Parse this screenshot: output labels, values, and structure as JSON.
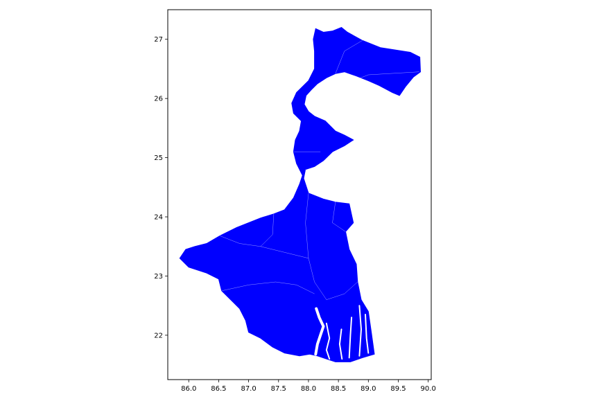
{
  "chart_data": {
    "type": "map",
    "title": "",
    "xlabel": "",
    "ylabel": "",
    "xlim": [
      85.65,
      90.05
    ],
    "ylim": [
      21.25,
      27.5
    ],
    "x_ticks": [
      "86.0",
      "86.5",
      "87.0",
      "87.5",
      "88.0",
      "88.5",
      "89.0",
      "89.5",
      "90.0"
    ],
    "y_ticks": [
      "22",
      "23",
      "24",
      "25",
      "26",
      "27"
    ],
    "fill_color": "#0000ff",
    "edge_color": "#ffffff",
    "grid": false,
    "legend": "none",
    "outline": [
      [
        88.12,
        27.18
      ],
      [
        88.25,
        27.12
      ],
      [
        88.4,
        27.14
      ],
      [
        88.55,
        27.2
      ],
      [
        88.65,
        27.12
      ],
      [
        88.9,
        26.98
      ],
      [
        89.2,
        26.86
      ],
      [
        89.45,
        26.82
      ],
      [
        89.7,
        26.78
      ],
      [
        89.86,
        26.7
      ],
      [
        89.87,
        26.45
      ],
      [
        89.75,
        26.36
      ],
      [
        89.62,
        26.2
      ],
      [
        89.52,
        26.05
      ],
      [
        89.4,
        26.1
      ],
      [
        89.18,
        26.22
      ],
      [
        89.0,
        26.3
      ],
      [
        88.8,
        26.38
      ],
      [
        88.6,
        26.45
      ],
      [
        88.45,
        26.42
      ],
      [
        88.3,
        26.35
      ],
      [
        88.15,
        26.25
      ],
      [
        88.05,
        26.15
      ],
      [
        87.96,
        26.05
      ],
      [
        87.93,
        25.9
      ],
      [
        88.0,
        25.78
      ],
      [
        88.1,
        25.7
      ],
      [
        88.28,
        25.62
      ],
      [
        88.45,
        25.45
      ],
      [
        88.6,
        25.38
      ],
      [
        88.75,
        25.3
      ],
      [
        88.6,
        25.2
      ],
      [
        88.4,
        25.1
      ],
      [
        88.25,
        24.95
      ],
      [
        88.1,
        24.85
      ],
      [
        87.95,
        24.8
      ],
      [
        87.92,
        24.65
      ],
      [
        88.0,
        24.4
      ],
      [
        88.25,
        24.3
      ],
      [
        88.45,
        24.25
      ],
      [
        88.68,
        24.22
      ],
      [
        88.75,
        23.9
      ],
      [
        88.62,
        23.75
      ],
      [
        88.68,
        23.45
      ],
      [
        88.8,
        23.2
      ],
      [
        88.82,
        22.9
      ],
      [
        88.88,
        22.6
      ],
      [
        89.0,
        22.4
      ],
      [
        89.05,
        22.05
      ],
      [
        89.1,
        21.68
      ],
      [
        88.9,
        21.62
      ],
      [
        88.7,
        21.55
      ],
      [
        88.45,
        21.55
      ],
      [
        88.3,
        21.6
      ],
      [
        88.15,
        21.65
      ],
      [
        88.02,
        21.68
      ],
      [
        87.85,
        21.65
      ],
      [
        87.6,
        21.7
      ],
      [
        87.4,
        21.8
      ],
      [
        87.2,
        21.95
      ],
      [
        87.0,
        22.05
      ],
      [
        86.95,
        22.25
      ],
      [
        86.85,
        22.45
      ],
      [
        86.75,
        22.55
      ],
      [
        86.55,
        22.75
      ],
      [
        86.5,
        22.95
      ],
      [
        86.3,
        23.05
      ],
      [
        86.0,
        23.15
      ],
      [
        85.85,
        23.3
      ],
      [
        85.95,
        23.45
      ],
      [
        86.1,
        23.5
      ],
      [
        86.3,
        23.55
      ],
      [
        86.52,
        23.68
      ],
      [
        86.8,
        23.82
      ],
      [
        87.0,
        23.9
      ],
      [
        87.2,
        23.98
      ],
      [
        87.42,
        24.05
      ],
      [
        87.6,
        24.12
      ],
      [
        87.75,
        24.32
      ],
      [
        87.85,
        24.55
      ],
      [
        87.9,
        24.7
      ],
      [
        87.8,
        24.9
      ],
      [
        87.75,
        25.1
      ],
      [
        87.78,
        25.3
      ],
      [
        87.85,
        25.45
      ],
      [
        87.88,
        25.62
      ],
      [
        87.75,
        25.75
      ],
      [
        87.72,
        25.92
      ],
      [
        87.8,
        26.1
      ],
      [
        88.0,
        26.3
      ],
      [
        88.1,
        26.5
      ],
      [
        88.1,
        26.8
      ],
      [
        88.08,
        27.0
      ]
    ],
    "rivers": [
      [
        [
          88.13,
          22.45
        ],
        [
          88.18,
          22.3
        ],
        [
          88.25,
          22.15
        ],
        [
          88.2,
          22.0
        ],
        [
          88.15,
          21.85
        ],
        [
          88.12,
          21.68
        ]
      ],
      [
        [
          88.3,
          22.2
        ],
        [
          88.35,
          21.95
        ],
        [
          88.3,
          21.75
        ],
        [
          88.35,
          21.6
        ]
      ],
      [
        [
          88.55,
          22.1
        ],
        [
          88.52,
          21.85
        ],
        [
          88.56,
          21.6
        ]
      ],
      [
        [
          88.72,
          22.3
        ],
        [
          88.7,
          22.0
        ],
        [
          88.68,
          21.62
        ]
      ],
      [
        [
          88.85,
          22.5
        ],
        [
          88.88,
          22.1
        ],
        [
          88.85,
          21.65
        ]
      ],
      [
        [
          88.95,
          22.35
        ],
        [
          88.97,
          21.95
        ],
        [
          89.0,
          21.7
        ]
      ]
    ],
    "boundaries": [
      [
        [
          88.08,
          26.1
        ],
        [
          88.5,
          26.2
        ],
        [
          89.0,
          26.4
        ],
        [
          89.85,
          26.45
        ]
      ],
      [
        [
          88.45,
          26.42
        ],
        [
          88.6,
          26.8
        ],
        [
          88.9,
          26.98
        ]
      ],
      [
        [
          87.95,
          24.8
        ],
        [
          88.1,
          24.55
        ],
        [
          88.45,
          24.25
        ]
      ],
      [
        [
          86.52,
          23.68
        ],
        [
          86.85,
          23.55
        ],
        [
          87.2,
          23.5
        ],
        [
          87.6,
          23.4
        ],
        [
          88.0,
          23.3
        ]
      ],
      [
        [
          88.0,
          24.4
        ],
        [
          87.95,
          23.9
        ],
        [
          88.0,
          23.3
        ],
        [
          88.1,
          22.9
        ],
        [
          88.3,
          22.6
        ]
      ],
      [
        [
          86.55,
          22.75
        ],
        [
          87.0,
          22.85
        ],
        [
          87.45,
          22.9
        ],
        [
          87.8,
          22.85
        ],
        [
          88.1,
          22.7
        ]
      ],
      [
        [
          88.3,
          22.6
        ],
        [
          88.6,
          22.7
        ],
        [
          88.82,
          22.9
        ]
      ],
      [
        [
          88.45,
          24.25
        ],
        [
          88.4,
          23.9
        ],
        [
          88.62,
          23.75
        ]
      ],
      [
        [
          87.42,
          24.05
        ],
        [
          87.4,
          23.7
        ],
        [
          87.2,
          23.5
        ]
      ],
      [
        [
          87.75,
          25.1
        ],
        [
          88.2,
          25.1
        ]
      ]
    ]
  }
}
